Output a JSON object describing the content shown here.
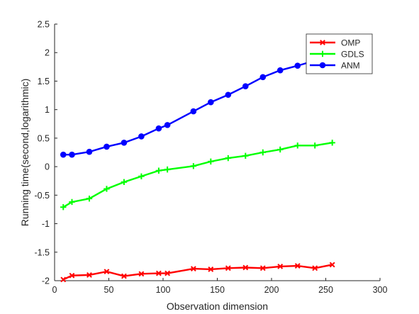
{
  "chart_data": {
    "type": "line",
    "title": "",
    "xlabel": "Observation dimension",
    "ylabel": "Running time(second,logarithmic)",
    "xlim": [
      0,
      300
    ],
    "ylim": [
      -2,
      2.5
    ],
    "xticks": [
      0,
      50,
      100,
      150,
      200,
      250,
      300
    ],
    "yticks": [
      -2,
      -1.5,
      -1,
      -0.5,
      0,
      0.5,
      1,
      1.5,
      2,
      2.5
    ],
    "xtick_labels": [
      "0",
      "50",
      "100",
      "150",
      "200",
      "250",
      "300"
    ],
    "ytick_labels": [
      "-2",
      "-1.5",
      "-1",
      "-0.5",
      "0",
      "0.5",
      "1",
      "1.5",
      "2",
      "2.5"
    ],
    "grid": false,
    "legend_position": "top-right",
    "series": [
      {
        "name": "OMP",
        "color": "#ff0000",
        "marker": "x",
        "x": [
          8,
          16,
          32,
          48,
          64,
          80,
          96,
          104,
          128,
          144,
          160,
          176,
          192,
          208,
          224,
          240,
          256
        ],
        "y": [
          -1.98,
          -1.91,
          -1.9,
          -1.84,
          -1.92,
          -1.88,
          -1.87,
          -1.87,
          -1.79,
          -1.8,
          -1.78,
          -1.77,
          -1.78,
          -1.75,
          -1.74,
          -1.78,
          -1.72
        ]
      },
      {
        "name": "GDLS",
        "color": "#00ff00",
        "marker": "plus",
        "x": [
          8,
          16,
          32,
          48,
          64,
          80,
          96,
          104,
          128,
          144,
          160,
          176,
          192,
          208,
          224,
          240,
          256
        ],
        "y": [
          -0.71,
          -0.62,
          -0.56,
          -0.39,
          -0.27,
          -0.17,
          -0.07,
          -0.05,
          0.01,
          0.09,
          0.15,
          0.19,
          0.25,
          0.3,
          0.37,
          0.37,
          0.42
        ]
      },
      {
        "name": "ANM",
        "color": "#0000ff",
        "marker": "circle",
        "x": [
          8,
          16,
          32,
          48,
          64,
          80,
          96,
          104,
          128,
          144,
          160,
          176,
          192,
          208,
          224,
          240
        ],
        "y": [
          0.21,
          0.21,
          0.26,
          0.35,
          0.42,
          0.53,
          0.67,
          0.73,
          0.97,
          1.13,
          1.26,
          1.41,
          1.57,
          1.69,
          1.77,
          1.86
        ]
      }
    ]
  }
}
